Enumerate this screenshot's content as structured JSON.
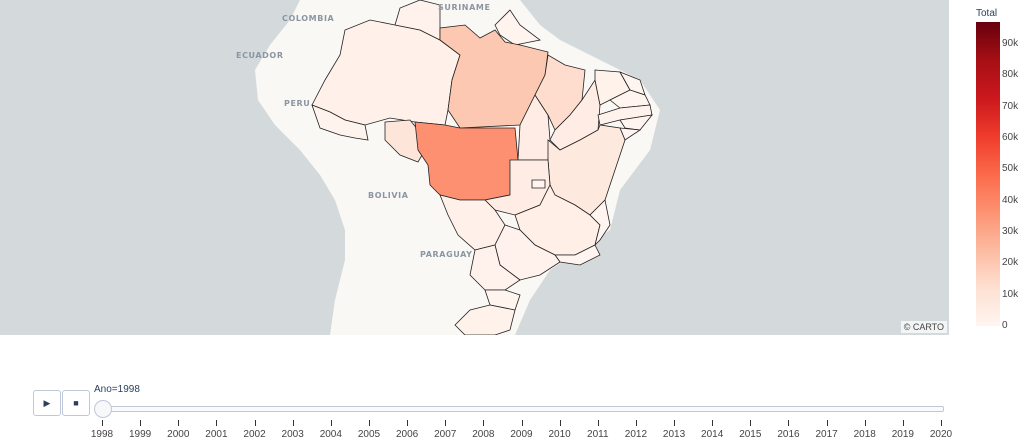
{
  "chart_data": {
    "type": "choropleth",
    "colorbar_title": "Total",
    "colorbar_ticks": [
      "0",
      "10k",
      "20k",
      "30k",
      "40k",
      "50k",
      "60k",
      "70k",
      "80k",
      "90k"
    ],
    "colorbar_range": [
      0,
      97000
    ],
    "colorscale": [
      "#fff5f0",
      "#fee0d2",
      "#fcbba1",
      "#fc9272",
      "#fb6a4a",
      "#ef3b2c",
      "#cb181d",
      "#a50f15",
      "#67000d"
    ],
    "frame_label": "Ano=1998",
    "years": [
      "1998",
      "1999",
      "2000",
      "2001",
      "2002",
      "2003",
      "2004",
      "2005",
      "2006",
      "2007",
      "2008",
      "2009",
      "2010",
      "2011",
      "2012",
      "2013",
      "2014",
      "2015",
      "2016",
      "2017",
      "2018",
      "2019",
      "2020"
    ],
    "selected_year": "1998",
    "regions": [
      {
        "id": "AM",
        "value": 2500
      },
      {
        "id": "RR",
        "value": 1500
      },
      {
        "id": "AP",
        "value": 800
      },
      {
        "id": "PA",
        "value": 20000
      },
      {
        "id": "AC",
        "value": 1200
      },
      {
        "id": "RO",
        "value": 9000
      },
      {
        "id": "MT",
        "value": 37000
      },
      {
        "id": "TO",
        "value": 5000
      },
      {
        "id": "MA",
        "value": 13000
      },
      {
        "id": "PI",
        "value": 4500
      },
      {
        "id": "CE",
        "value": 2000
      },
      {
        "id": "RN",
        "value": 800
      },
      {
        "id": "PB",
        "value": 800
      },
      {
        "id": "PE",
        "value": 1500
      },
      {
        "id": "AL",
        "value": 500
      },
      {
        "id": "SE",
        "value": 400
      },
      {
        "id": "BA",
        "value": 7000
      },
      {
        "id": "GO",
        "value": 4500
      },
      {
        "id": "DF",
        "value": 300
      },
      {
        "id": "MG",
        "value": 3500
      },
      {
        "id": "MS",
        "value": 3000
      },
      {
        "id": "ES",
        "value": 600
      },
      {
        "id": "RJ",
        "value": 600
      },
      {
        "id": "SP",
        "value": 1500
      },
      {
        "id": "PR",
        "value": 2200
      },
      {
        "id": "SC",
        "value": 800
      },
      {
        "id": "RS",
        "value": 2000
      }
    ],
    "map_labels": [
      "COLOMBIA",
      "SURINAME",
      "ECUADOR",
      "PERU",
      "BOLIVIA",
      "PARAGUAY"
    ],
    "attribution": "© CARTO"
  },
  "controls": {
    "play_icon": "▶",
    "stop_icon": "■"
  }
}
